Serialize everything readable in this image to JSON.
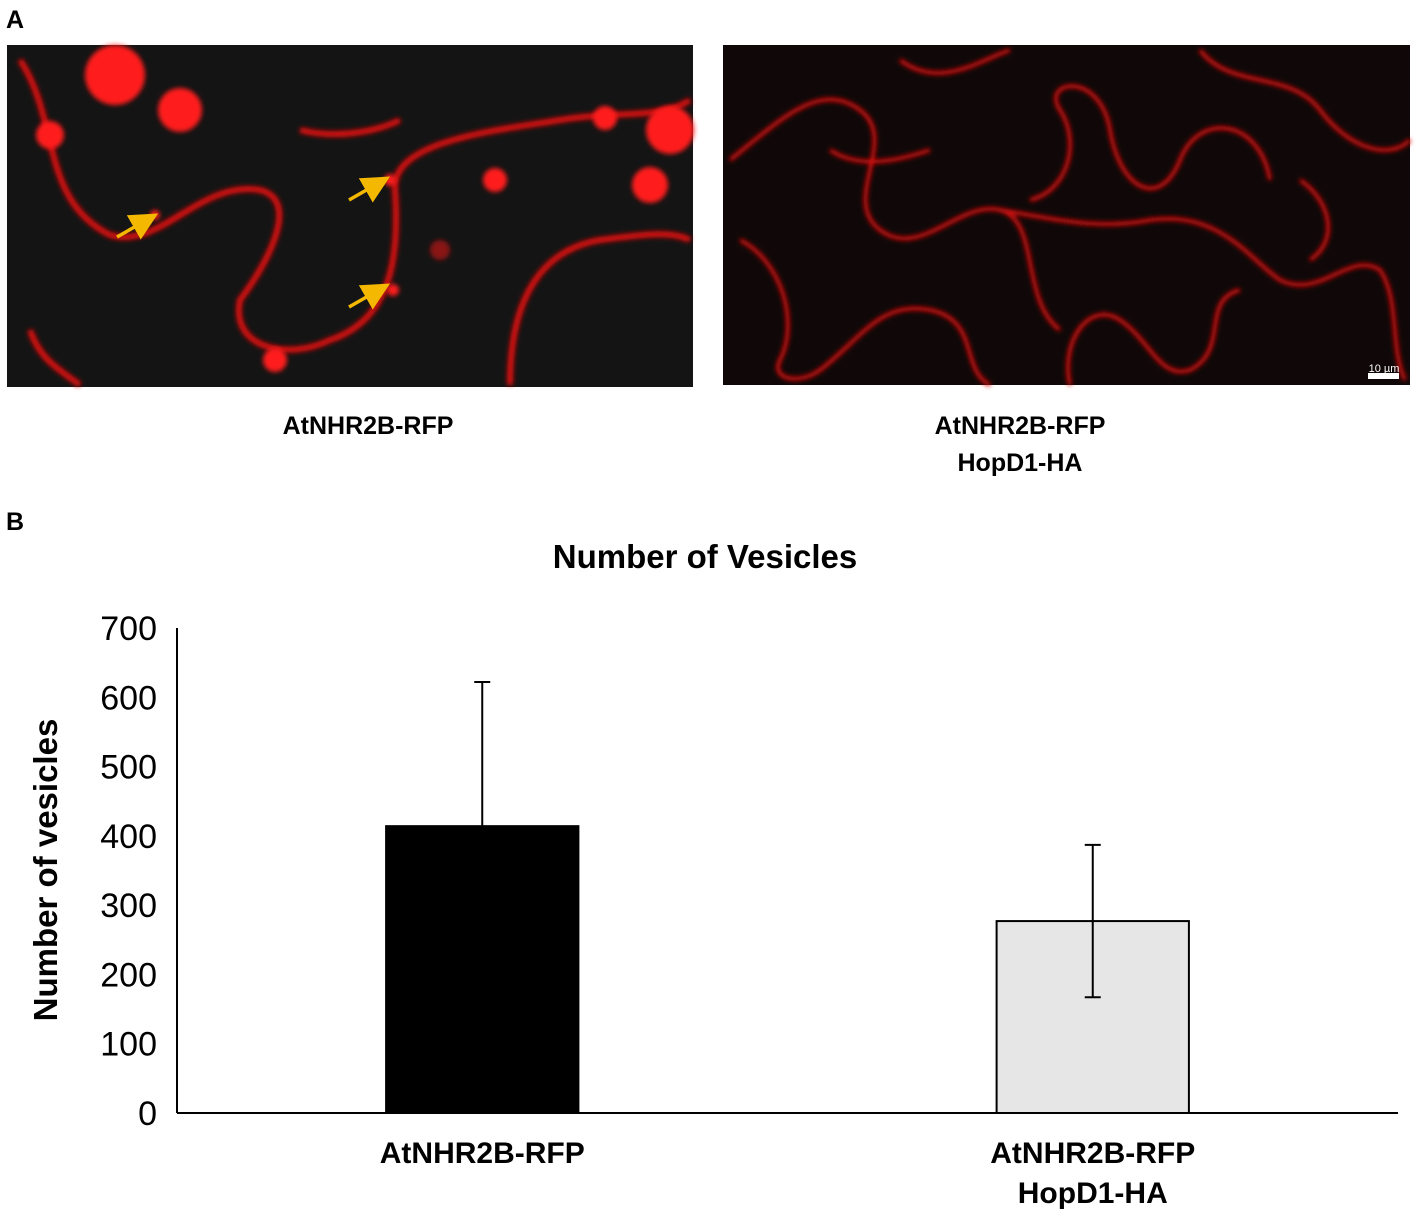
{
  "panel_a": {
    "label": "A",
    "images": [
      {
        "caption": [
          "AtNHR2B-RFP"
        ]
      },
      {
        "caption": [
          "AtNHR2B-RFP",
          "HopD1-HA"
        ],
        "scale_bar": "10 µm"
      }
    ]
  },
  "panel_b": {
    "label": "B"
  },
  "chart_data": {
    "type": "bar",
    "title": "Number of Vesicles",
    "y_label": "Number of vesicles",
    "categories": [
      [
        "AtNHR2B-RFP"
      ],
      [
        "AtNHR2B-RFP",
        "HopD1-HA"
      ]
    ],
    "values": [
      414,
      277
    ],
    "errors": [
      208,
      110
    ],
    "colors": [
      "#000000",
      "#e6e6e6"
    ],
    "ylim": [
      0,
      700
    ],
    "yticks": [
      0,
      100,
      200,
      300,
      400,
      500,
      600,
      700
    ],
    "grid": false
  }
}
